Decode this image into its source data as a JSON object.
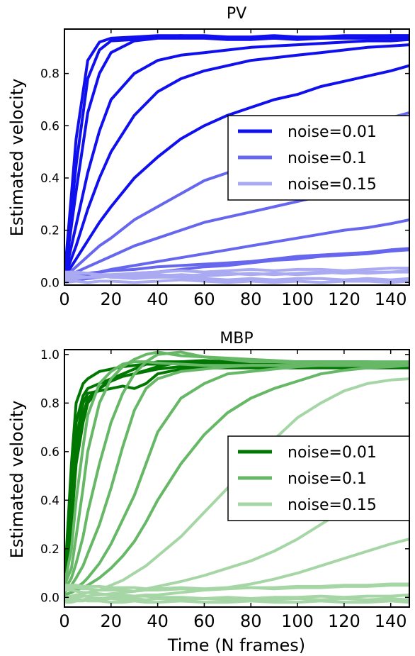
{
  "chart_data": [
    {
      "type": "line",
      "title": "PV",
      "xlabel": "",
      "ylabel": "Estimated velocity",
      "xlim": [
        0,
        148
      ],
      "ylim": [
        -0.01,
        0.97
      ],
      "xticks": [
        0,
        20,
        40,
        60,
        80,
        100,
        120,
        140
      ],
      "yticks": [
        0.0,
        0.2,
        0.4,
        0.6,
        0.8
      ],
      "legend_position": "center-right",
      "colors": {
        "noise=0.01": "#1010ee",
        "noise=0.1": "#6666ee",
        "noise=0.15": "#aaaaf2"
      },
      "legend": [
        {
          "label": "noise=0.01",
          "color": "#1010ee"
        },
        {
          "label": "noise=0.1",
          "color": "#6666ee"
        },
        {
          "label": "noise=0.15",
          "color": "#aaaaf2"
        }
      ],
      "x": [
        0,
        5,
        10,
        15,
        20,
        30,
        40,
        50,
        60,
        70,
        80,
        90,
        100,
        110,
        120,
        130,
        140,
        148
      ],
      "series": [
        {
          "group": "noise=0.01",
          "values": [
            0.02,
            0.55,
            0.85,
            0.92,
            0.935,
            0.94,
            0.945,
            0.945,
            0.945,
            0.94,
            0.94,
            0.945,
            0.94,
            0.94,
            0.945,
            0.945,
            0.945,
            0.945
          ]
        },
        {
          "group": "noise=0.01",
          "values": [
            0.02,
            0.45,
            0.78,
            0.89,
            0.925,
            0.93,
            0.94,
            0.945,
            0.94,
            0.935,
            0.935,
            0.94,
            0.935,
            0.935,
            0.94,
            0.94,
            0.945,
            0.945
          ]
        },
        {
          "group": "noise=0.01",
          "values": [
            0.02,
            0.35,
            0.65,
            0.8,
            0.88,
            0.925,
            0.935,
            0.935,
            0.935,
            0.93,
            0.93,
            0.935,
            0.93,
            0.935,
            0.935,
            0.935,
            0.935,
            0.935
          ]
        },
        {
          "group": "noise=0.01",
          "values": [
            0.02,
            0.22,
            0.42,
            0.58,
            0.7,
            0.8,
            0.85,
            0.87,
            0.88,
            0.89,
            0.9,
            0.905,
            0.91,
            0.915,
            0.92,
            0.925,
            0.925,
            0.93
          ]
        },
        {
          "group": "noise=0.01",
          "values": [
            0.02,
            0.14,
            0.28,
            0.4,
            0.5,
            0.64,
            0.73,
            0.78,
            0.81,
            0.83,
            0.85,
            0.86,
            0.87,
            0.88,
            0.89,
            0.9,
            0.905,
            0.91
          ]
        },
        {
          "group": "noise=0.01",
          "values": [
            0.02,
            0.09,
            0.16,
            0.23,
            0.29,
            0.4,
            0.48,
            0.55,
            0.6,
            0.64,
            0.67,
            0.7,
            0.72,
            0.75,
            0.77,
            0.79,
            0.81,
            0.83
          ]
        },
        {
          "group": "noise=0.1",
          "values": [
            0.02,
            0.06,
            0.1,
            0.14,
            0.17,
            0.24,
            0.29,
            0.34,
            0.39,
            0.42,
            0.46,
            0.49,
            0.52,
            0.55,
            0.58,
            0.6,
            0.63,
            0.65
          ]
        },
        {
          "group": "noise=0.1",
          "values": [
            0.02,
            0.04,
            0.06,
            0.08,
            0.1,
            0.14,
            0.17,
            0.2,
            0.23,
            0.25,
            0.27,
            0.29,
            0.31,
            0.33,
            0.35,
            0.36,
            0.37,
            0.38
          ]
        },
        {
          "group": "noise=0.1",
          "values": [
            0.01,
            0.02,
            0.03,
            0.04,
            0.05,
            0.065,
            0.08,
            0.095,
            0.11,
            0.125,
            0.14,
            0.155,
            0.17,
            0.185,
            0.2,
            0.21,
            0.225,
            0.24
          ]
        },
        {
          "group": "noise=0.1",
          "values": [
            0.03,
            0.03,
            0.035,
            0.04,
            0.045,
            0.05,
            0.06,
            0.065,
            0.07,
            0.075,
            0.08,
            0.09,
            0.1,
            0.105,
            0.11,
            0.115,
            0.125,
            0.13
          ]
        },
        {
          "group": "noise=0.1",
          "values": [
            0.0,
            0.01,
            0.015,
            0.02,
            0.025,
            0.035,
            0.04,
            0.05,
            0.06,
            0.065,
            0.075,
            0.085,
            0.09,
            0.1,
            0.105,
            0.11,
            0.12,
            0.125
          ]
        },
        {
          "group": "noise=0.15",
          "values": [
            0.03,
            0.035,
            0.035,
            0.03,
            0.03,
            0.035,
            0.04,
            0.045,
            0.04,
            0.045,
            0.05,
            0.045,
            0.05,
            0.05,
            0.045,
            0.05,
            0.055,
            0.055
          ]
        },
        {
          "group": "noise=0.15",
          "values": [
            0.01,
            0.015,
            0.02,
            0.02,
            0.025,
            0.02,
            0.025,
            0.03,
            0.025,
            0.03,
            0.035,
            0.03,
            0.035,
            0.04,
            0.035,
            0.04,
            0.04,
            0.045
          ]
        },
        {
          "group": "noise=0.15",
          "values": [
            0.04,
            0.04,
            0.035,
            0.03,
            0.02,
            0.015,
            0.02,
            0.02,
            0.015,
            0.01,
            0.015,
            0.01,
            0.015,
            0.015,
            0.01,
            0.015,
            0.01,
            0.015
          ]
        },
        {
          "group": "noise=0.15",
          "values": [
            0.0,
            0.005,
            0.0,
            0.005,
            0.005,
            0.0,
            0.005,
            0.01,
            0.005,
            0.0,
            0.005,
            0.0,
            0.005,
            0.0,
            0.005,
            0.005,
            0.0,
            0.005
          ]
        },
        {
          "group": "noise=0.15",
          "values": [
            0.02,
            0.025,
            0.02,
            0.025,
            0.02,
            0.03,
            0.03,
            0.025,
            0.03,
            0.035,
            0.03,
            0.035,
            0.03,
            0.035,
            0.04,
            0.035,
            0.04,
            0.04
          ]
        }
      ]
    },
    {
      "type": "line",
      "title": "MBP",
      "xlabel": "Time (N frames)",
      "ylabel": "Estimated velocity",
      "xlim": [
        0,
        148
      ],
      "ylim": [
        -0.04,
        1.02
      ],
      "xticks": [
        0,
        20,
        40,
        60,
        80,
        100,
        120,
        140
      ],
      "yticks": [
        0.0,
        0.2,
        0.4,
        0.6,
        0.8,
        1.0
      ],
      "legend_position": "center-right",
      "colors": {
        "noise=0.01": "#007700",
        "noise=0.1": "#66b866",
        "noise=0.15": "#a6d6a6"
      },
      "legend": [
        {
          "label": "noise=0.01",
          "color": "#007700"
        },
        {
          "label": "noise=0.1",
          "color": "#66b866"
        },
        {
          "label": "noise=0.15",
          "color": "#a6d6a6"
        }
      ],
      "x": [
        0,
        3,
        5,
        8,
        10,
        15,
        20,
        25,
        30,
        35,
        40,
        50,
        60,
        70,
        80,
        90,
        100,
        110,
        120,
        130,
        140,
        148
      ],
      "series": [
        {
          "group": "noise=0.01",
          "values": [
            0.05,
            0.55,
            0.8,
            0.88,
            0.9,
            0.93,
            0.94,
            0.95,
            0.955,
            0.96,
            0.96,
            0.965,
            0.965,
            0.965,
            0.96,
            0.96,
            0.96,
            0.96,
            0.96,
            0.96,
            0.96,
            0.96
          ]
        },
        {
          "group": "noise=0.01",
          "values": [
            0.05,
            0.45,
            0.72,
            0.83,
            0.86,
            0.88,
            0.9,
            0.91,
            0.92,
            0.93,
            0.94,
            0.95,
            0.95,
            0.955,
            0.955,
            0.955,
            0.955,
            0.955,
            0.955,
            0.955,
            0.955,
            0.955
          ]
        },
        {
          "group": "noise=0.01",
          "values": [
            0.05,
            0.4,
            0.65,
            0.8,
            0.84,
            0.85,
            0.86,
            0.87,
            0.86,
            0.88,
            0.92,
            0.94,
            0.945,
            0.945,
            0.945,
            0.945,
            0.945,
            0.945,
            0.945,
            0.945,
            0.945,
            0.945
          ]
        },
        {
          "group": "noise=0.01",
          "values": [
            0.05,
            0.35,
            0.6,
            0.75,
            0.82,
            0.86,
            0.89,
            0.91,
            0.92,
            0.935,
            0.95,
            0.97,
            0.975,
            0.97,
            0.97,
            0.97,
            0.97,
            0.97,
            0.97,
            0.97,
            0.965,
            0.965
          ]
        },
        {
          "group": "noise=0.01",
          "values": [
            0.05,
            0.3,
            0.55,
            0.72,
            0.8,
            0.86,
            0.9,
            0.92,
            0.94,
            0.96,
            0.97,
            0.97,
            0.965,
            0.96,
            0.96,
            0.96,
            0.96,
            0.96,
            0.96,
            0.955,
            0.955,
            0.955
          ]
        },
        {
          "group": "noise=0.1",
          "values": [
            0.05,
            0.2,
            0.4,
            0.62,
            0.75,
            0.88,
            0.93,
            0.96,
            0.97,
            0.97,
            0.965,
            0.96,
            0.955,
            0.955,
            0.955,
            0.955,
            0.955,
            0.955,
            0.955,
            0.955,
            0.955,
            0.955
          ]
        },
        {
          "group": "noise=0.1",
          "values": [
            0.05,
            0.12,
            0.25,
            0.45,
            0.6,
            0.8,
            0.9,
            0.95,
            0.98,
            1.0,
            1.01,
            0.995,
            0.99,
            0.985,
            0.98,
            0.975,
            0.97,
            0.97,
            0.97,
            0.97,
            0.97,
            0.97
          ]
        },
        {
          "group": "noise=0.1",
          "values": [
            0.03,
            0.08,
            0.14,
            0.25,
            0.35,
            0.55,
            0.72,
            0.84,
            0.92,
            0.97,
            1.0,
            1.01,
            0.99,
            0.98,
            0.97,
            0.97,
            0.965,
            0.965,
            0.965,
            0.965,
            0.965,
            0.965
          ]
        },
        {
          "group": "noise=0.1",
          "values": [
            0.02,
            0.05,
            0.08,
            0.13,
            0.18,
            0.3,
            0.45,
            0.62,
            0.77,
            0.86,
            0.9,
            0.93,
            0.94,
            0.95,
            0.955,
            0.955,
            0.955,
            0.955,
            0.955,
            0.955,
            0.955,
            0.955
          ]
        },
        {
          "group": "noise=0.1",
          "values": [
            0.01,
            0.02,
            0.04,
            0.06,
            0.08,
            0.14,
            0.22,
            0.32,
            0.42,
            0.55,
            0.68,
            0.82,
            0.88,
            0.92,
            0.93,
            0.94,
            0.95,
            0.955,
            0.955,
            0.955,
            0.955,
            0.955
          ]
        },
        {
          "group": "noise=0.1",
          "values": [
            0.01,
            0.02,
            0.03,
            0.04,
            0.05,
            0.08,
            0.12,
            0.17,
            0.23,
            0.31,
            0.4,
            0.55,
            0.67,
            0.76,
            0.82,
            0.86,
            0.89,
            0.92,
            0.935,
            0.945,
            0.95,
            0.955
          ]
        },
        {
          "group": "noise=0.15",
          "values": [
            0.0,
            0.005,
            0.01,
            0.015,
            0.02,
            0.03,
            0.05,
            0.07,
            0.1,
            0.13,
            0.17,
            0.25,
            0.35,
            0.45,
            0.55,
            0.65,
            0.74,
            0.8,
            0.85,
            0.88,
            0.895,
            0.9
          ]
        },
        {
          "group": "noise=0.15",
          "values": [
            0.0,
            0.0,
            0.0,
            0.005,
            0.005,
            0.01,
            0.015,
            0.02,
            0.025,
            0.035,
            0.045,
            0.065,
            0.09,
            0.12,
            0.15,
            0.19,
            0.24,
            0.3,
            0.36,
            0.41,
            0.46,
            0.5
          ]
        },
        {
          "group": "noise=0.15",
          "values": [
            -0.01,
            -0.01,
            -0.01,
            -0.01,
            -0.005,
            -0.005,
            0.0,
            0.0,
            0.005,
            0.01,
            0.01,
            0.02,
            0.03,
            0.04,
            0.055,
            0.075,
            0.1,
            0.13,
            0.16,
            0.19,
            0.22,
            0.24
          ]
        },
        {
          "group": "noise=0.15",
          "values": [
            0.05,
            0.05,
            0.05,
            0.045,
            0.045,
            0.045,
            0.04,
            0.04,
            0.04,
            0.035,
            0.035,
            0.04,
            0.035,
            0.04,
            0.04,
            0.035,
            0.04,
            0.04,
            0.045,
            0.045,
            0.05,
            0.05
          ]
        },
        {
          "group": "noise=0.15",
          "values": [
            0.04,
            0.04,
            0.04,
            0.035,
            0.035,
            0.03,
            0.03,
            0.03,
            0.025,
            0.03,
            0.03,
            0.035,
            0.03,
            0.035,
            0.04,
            0.04,
            0.045,
            0.045,
            0.05,
            0.05,
            0.055,
            0.055
          ]
        },
        {
          "group": "noise=0.15",
          "values": [
            0.03,
            0.03,
            0.025,
            0.02,
            0.02,
            0.015,
            0.01,
            0.01,
            0.005,
            0.005,
            0.0,
            0.0,
            -0.005,
            0.0,
            -0.005,
            0.0,
            0.0,
            0.005,
            0.0,
            0.005,
            0.005,
            0.01
          ]
        },
        {
          "group": "noise=0.15",
          "values": [
            0.0,
            -0.005,
            -0.01,
            -0.01,
            -0.015,
            -0.015,
            -0.02,
            -0.02,
            -0.015,
            -0.02,
            -0.02,
            -0.015,
            -0.02,
            -0.02,
            -0.015,
            -0.02,
            -0.02,
            -0.015,
            -0.02,
            -0.02,
            -0.015,
            -0.02
          ]
        },
        {
          "group": "noise=0.15",
          "values": [
            -0.02,
            -0.02,
            -0.015,
            -0.015,
            -0.01,
            -0.01,
            -0.005,
            -0.01,
            -0.005,
            -0.01,
            -0.005,
            -0.01,
            -0.005,
            -0.01,
            -0.005,
            -0.01,
            -0.005,
            -0.01,
            -0.005,
            -0.01,
            -0.005,
            -0.01
          ]
        }
      ]
    }
  ]
}
